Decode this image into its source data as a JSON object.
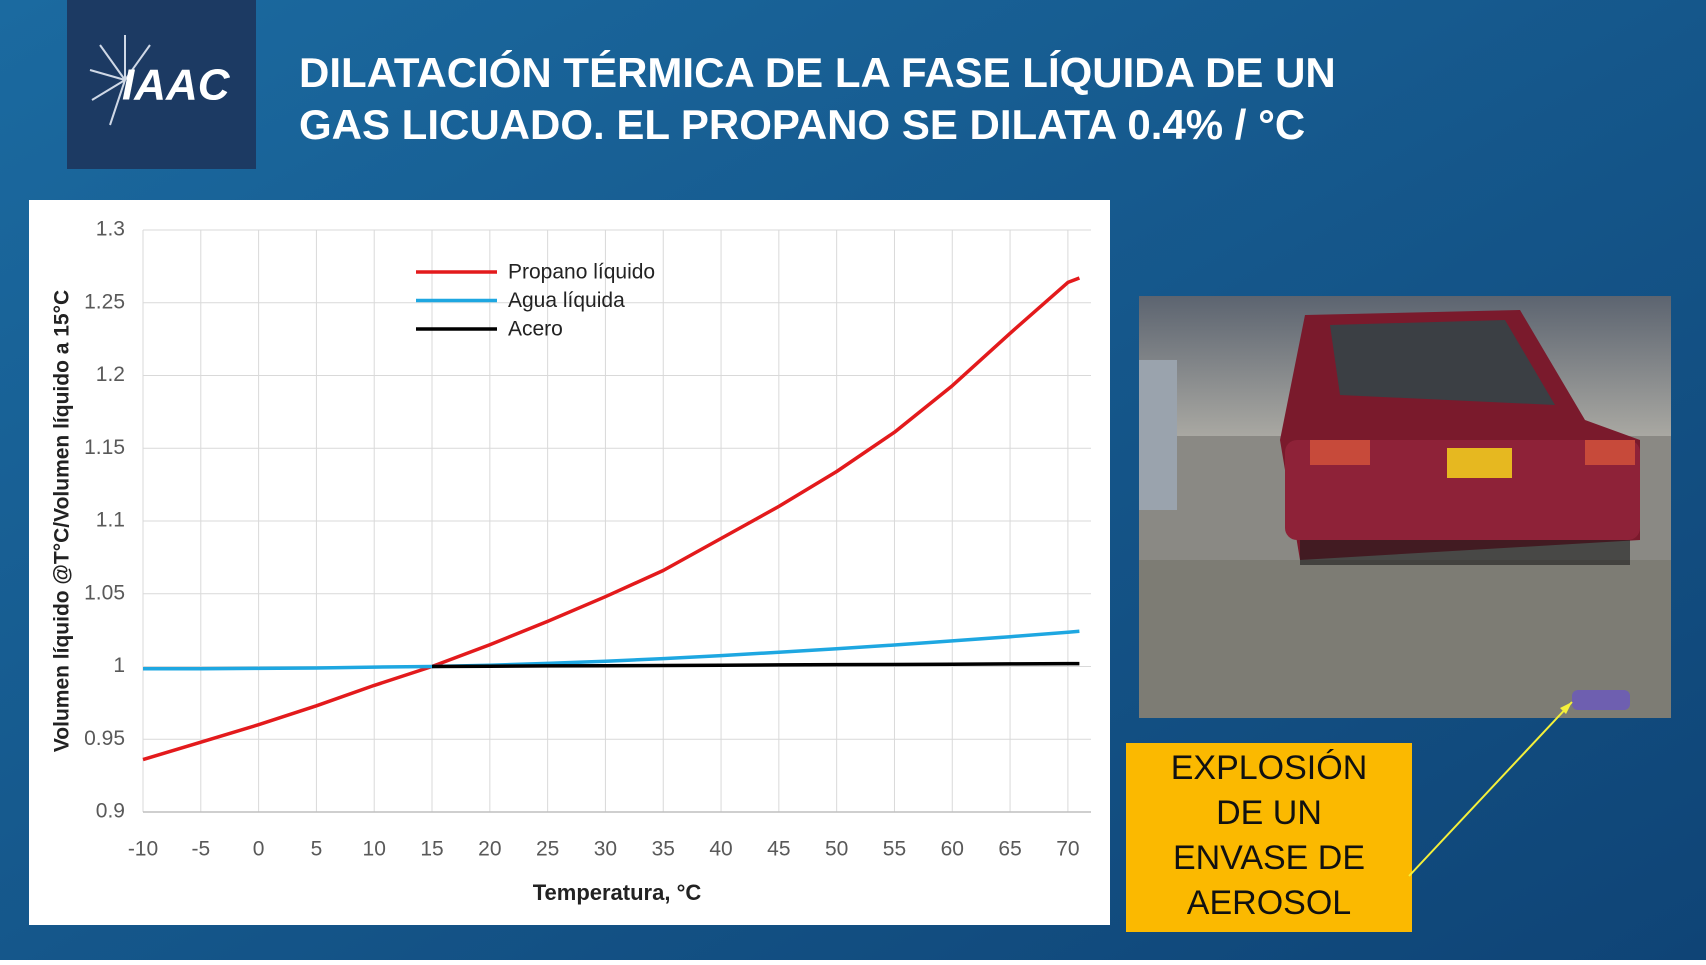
{
  "title": [
    "DILATACIÓN TÉRMICA DE LA FASE LÍQUIDA DE UN",
    "GAS LICUADO. EL PROPANO SE DILATA 0.4% / °C"
  ],
  "logo": "IAAC",
  "callout": [
    "EXPLOSIÓN",
    "DE UN",
    "ENVASE DE",
    "AEROSOL"
  ],
  "chart_data": {
    "type": "line",
    "x_label": "Temperatura, °C",
    "y_label": "Volumen líquido @T°C/Volumen líquido a 15°C",
    "x": [
      -10,
      -5,
      0,
      5,
      10,
      15,
      20,
      25,
      30,
      35,
      40,
      45,
      50,
      55,
      60,
      65,
      70,
      71
    ],
    "series": [
      {
        "name": "Propano líquido",
        "color": "#e31a1c",
        "values": [
          0.936,
          0.948,
          0.96,
          0.973,
          0.987,
          1.0,
          1.015,
          1.031,
          1.048,
          1.066,
          1.088,
          1.11,
          1.134,
          1.161,
          1.193,
          1.229,
          1.264,
          1.267
        ]
      },
      {
        "name": "Agua líquida",
        "color": "#1ea7e1",
        "values": [
          0.9985,
          0.9985,
          0.9987,
          0.999,
          0.9996,
          1.0,
          1.0009,
          1.0021,
          1.0036,
          1.0054,
          1.0075,
          1.0098,
          1.0122,
          1.0148,
          1.0176,
          1.0205,
          1.0236,
          1.0242
        ]
      },
      {
        "name": "Acero",
        "color": "#000000",
        "values": [
          null,
          null,
          null,
          null,
          null,
          1.0,
          1.0002,
          1.0004,
          1.0005,
          1.0007,
          1.0009,
          1.0011,
          1.0013,
          1.0014,
          1.0016,
          1.0018,
          1.002,
          1.002
        ]
      }
    ],
    "xlim": [
      -10,
      72
    ],
    "xticks": [
      -10,
      -5,
      0,
      5,
      10,
      15,
      20,
      25,
      30,
      35,
      40,
      45,
      50,
      55,
      60,
      65,
      70
    ],
    "ylim": [
      0.9,
      1.3
    ],
    "yticks": [
      0.9,
      0.95,
      1,
      1.05,
      1.1,
      1.15,
      1.2,
      1.25,
      1.3
    ],
    "grid": true,
    "legend": "top-left"
  }
}
